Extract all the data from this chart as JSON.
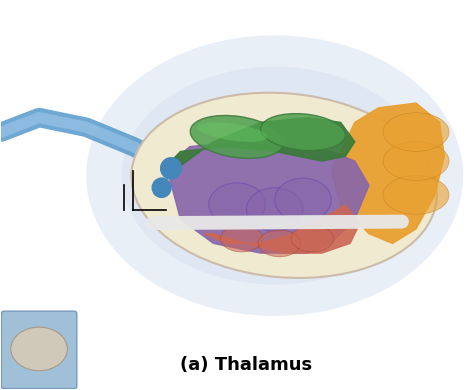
{
  "title": "(a) Thalamus",
  "title_fontsize": 13,
  "title_fontweight": "bold",
  "background_color": "#ffffff",
  "glow_color": "#b8cce4",
  "colors": {
    "green": "#3a7a3a",
    "green_light": "#4e9e4e",
    "orange": "#e8a030",
    "purple": "#8866aa",
    "red": "#cc6655",
    "blue_tube": "#5599cc",
    "blue_dot": "#4488bb",
    "white_tube": "#e8e8e8",
    "cream": "#f0ead0",
    "inset_bg": "#a0c0d8"
  }
}
